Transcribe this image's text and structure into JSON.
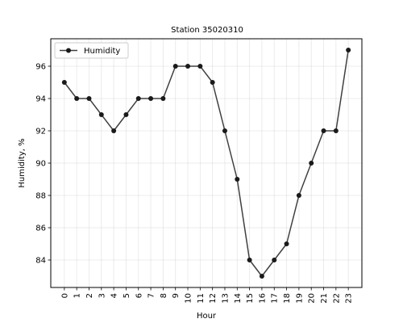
{
  "chart_data": {
    "type": "line",
    "title": "Station 35020310",
    "xlabel": "Hour",
    "ylabel": "Humidity, %",
    "x": [
      0,
      1,
      2,
      3,
      4,
      5,
      6,
      7,
      8,
      9,
      10,
      11,
      12,
      13,
      14,
      15,
      16,
      17,
      18,
      19,
      20,
      21,
      22,
      23
    ],
    "x_ticks": [
      "0",
      "1",
      "2",
      "3",
      "4",
      "5",
      "6",
      "7",
      "8",
      "9",
      "10",
      "11",
      "12",
      "13",
      "14",
      "15",
      "16",
      "17",
      "18",
      "19",
      "20",
      "21",
      "22",
      "23"
    ],
    "y_ticks": [
      84,
      86,
      88,
      90,
      92,
      94,
      96
    ],
    "ylim": [
      82.3,
      97.7
    ],
    "xlim": [
      -1.1,
      24.1
    ],
    "grid": true,
    "legend": "upper left",
    "series": [
      {
        "name": "Humidity",
        "color": "#404040",
        "marker_color": "#1a1a1a",
        "values": [
          95,
          94,
          94,
          93,
          92,
          93,
          94,
          94,
          94,
          96,
          96,
          96,
          95,
          92,
          89,
          84,
          83,
          84,
          85,
          88,
          90,
          92,
          92,
          97
        ]
      }
    ]
  }
}
